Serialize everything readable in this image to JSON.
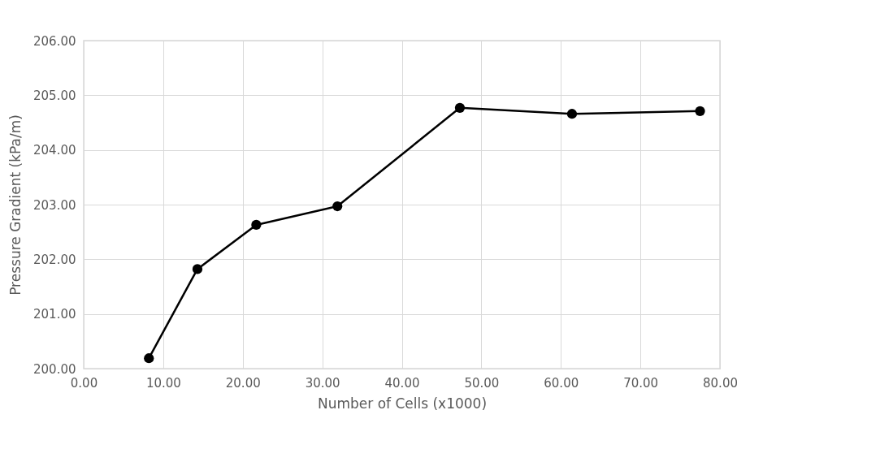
{
  "chart_data": {
    "type": "line",
    "xlabel": "Number of Cells (x1000)",
    "ylabel": "Pressure Gradient (kPa/m)",
    "x": [
      8.2,
      14.3,
      21.7,
      31.9,
      47.3,
      61.4,
      77.5
    ],
    "series": [
      {
        "color": "#000000",
        "values": [
          200.19,
          201.82,
          202.63,
          202.97,
          204.77,
          204.66,
          204.71
        ]
      }
    ],
    "xlim": [
      0,
      80
    ],
    "xticks": [
      {
        "value": 0,
        "label": "0.00"
      },
      {
        "value": 10,
        "label": "10.00"
      },
      {
        "value": 20,
        "label": "20.00"
      },
      {
        "value": 30,
        "label": "30.00"
      },
      {
        "value": 40,
        "label": "40.00"
      },
      {
        "value": 50,
        "label": "50.00"
      },
      {
        "value": 60,
        "label": "60.00"
      },
      {
        "value": 70,
        "label": "70.00"
      },
      {
        "value": 80,
        "label": "80.00"
      }
    ],
    "ylim": [
      200,
      206
    ],
    "yticks": [
      {
        "value": 200,
        "label": "200.00"
      },
      {
        "value": 201,
        "label": "201.00"
      },
      {
        "value": 202,
        "label": "202.00"
      },
      {
        "value": 203,
        "label": "203.00"
      },
      {
        "value": 204,
        "label": "204.00"
      },
      {
        "value": 205,
        "label": "205.00"
      },
      {
        "value": 206,
        "label": "206.00"
      }
    ],
    "grid": true,
    "marker": "circle",
    "line_style": "solid",
    "legend": false
  }
}
